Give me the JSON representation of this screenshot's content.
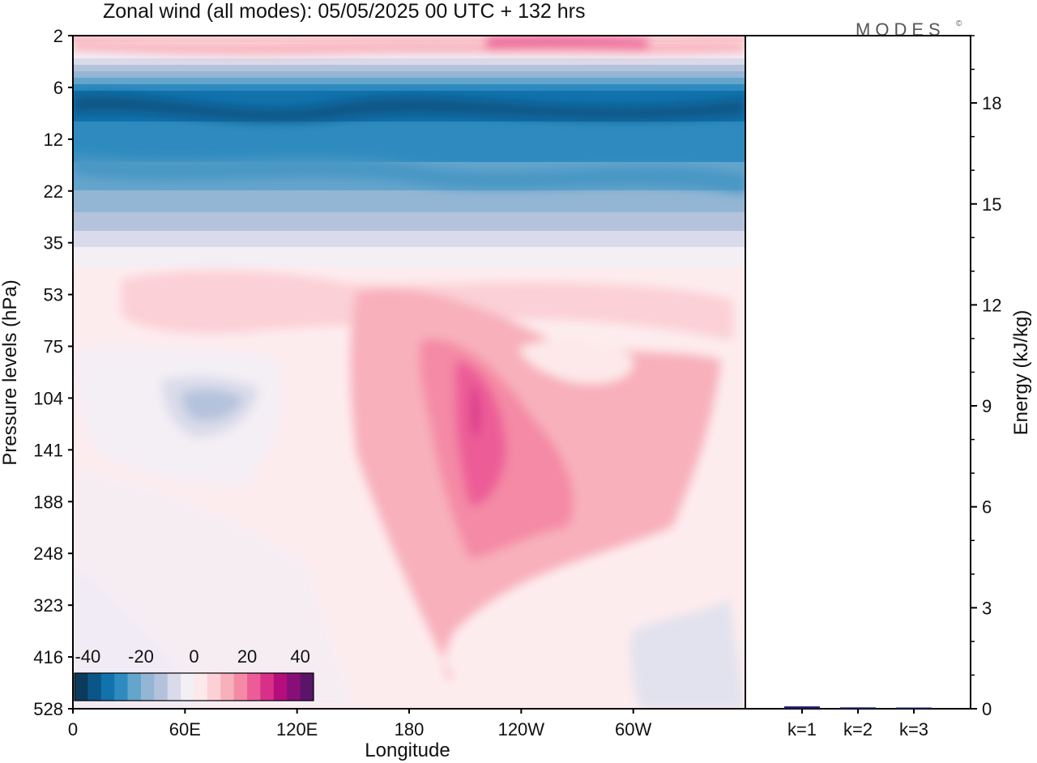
{
  "logo": {
    "text": "MODES",
    "mark": "©"
  },
  "chart_data": [
    {
      "type": "heatmap",
      "title": "Zonal wind (all modes):  05/05/2025  00 UTC  + 132 hrs",
      "xlabel": "Longitude",
      "ylabel": "Pressure levels (hPa)",
      "x_ticks": [
        {
          "label": "0",
          "lon": 0
        },
        {
          "label": "60E",
          "lon": 60
        },
        {
          "label": "120E",
          "lon": 120
        },
        {
          "label": "180",
          "lon": 180
        },
        {
          "label": "120W",
          "lon": 240
        },
        {
          "label": "60W",
          "lon": 300
        }
      ],
      "x_range": [
        0,
        360
      ],
      "y_ticks": [
        "2",
        "6",
        "12",
        "22",
        "35",
        "53",
        "75",
        "104",
        "141",
        "188",
        "248",
        "323",
        "416",
        "528"
      ],
      "y_range_hPa": [
        2,
        528
      ],
      "colorbar": {
        "labels": [
          "-40",
          "-20",
          "0",
          "20",
          "40"
        ],
        "range": [
          -45,
          45
        ],
        "step": 5,
        "colors": [
          "#0c3a5c",
          "#0c5687",
          "#1272ac",
          "#2f8bbf",
          "#64a5cc",
          "#93b6d4",
          "#b5c2dc",
          "#d9dbea",
          "#f4eef5",
          "#fde9ea",
          "#fbd0d6",
          "#f8b0bb",
          "#f48aa5",
          "#ec5d97",
          "#d82f89",
          "#b30e7c",
          "#880f78",
          "#5a1468"
        ]
      },
      "features": [
        {
          "name": "stratospheric easterlies",
          "lon_range": [
            0,
            360
          ],
          "p_range_hPa": [
            5,
            30
          ],
          "peak_value": -38
        },
        {
          "name": "upper westerlies",
          "lon_range": [
            0,
            360
          ],
          "p_range_hPa": [
            2,
            4
          ],
          "peak_value": 22
        },
        {
          "name": "pacific westerly jet",
          "lon": 200,
          "p_hPa": 120,
          "peak_value": 32
        },
        {
          "name": "indian ocean easterlies",
          "lon": 70,
          "p_hPa": 110,
          "peak_value": -15
        }
      ]
    },
    {
      "type": "bar",
      "ylabel": "Energy (kJ/kg)",
      "categories": [
        "k=1",
        "k=2",
        "k=3"
      ],
      "values": [
        0.07,
        0.04,
        0.02
      ],
      "ylim": [
        0,
        20
      ],
      "y_ticks": [
        0,
        3,
        6,
        9,
        12,
        15,
        18
      ],
      "bar_color": "#1c1f6b"
    }
  ]
}
